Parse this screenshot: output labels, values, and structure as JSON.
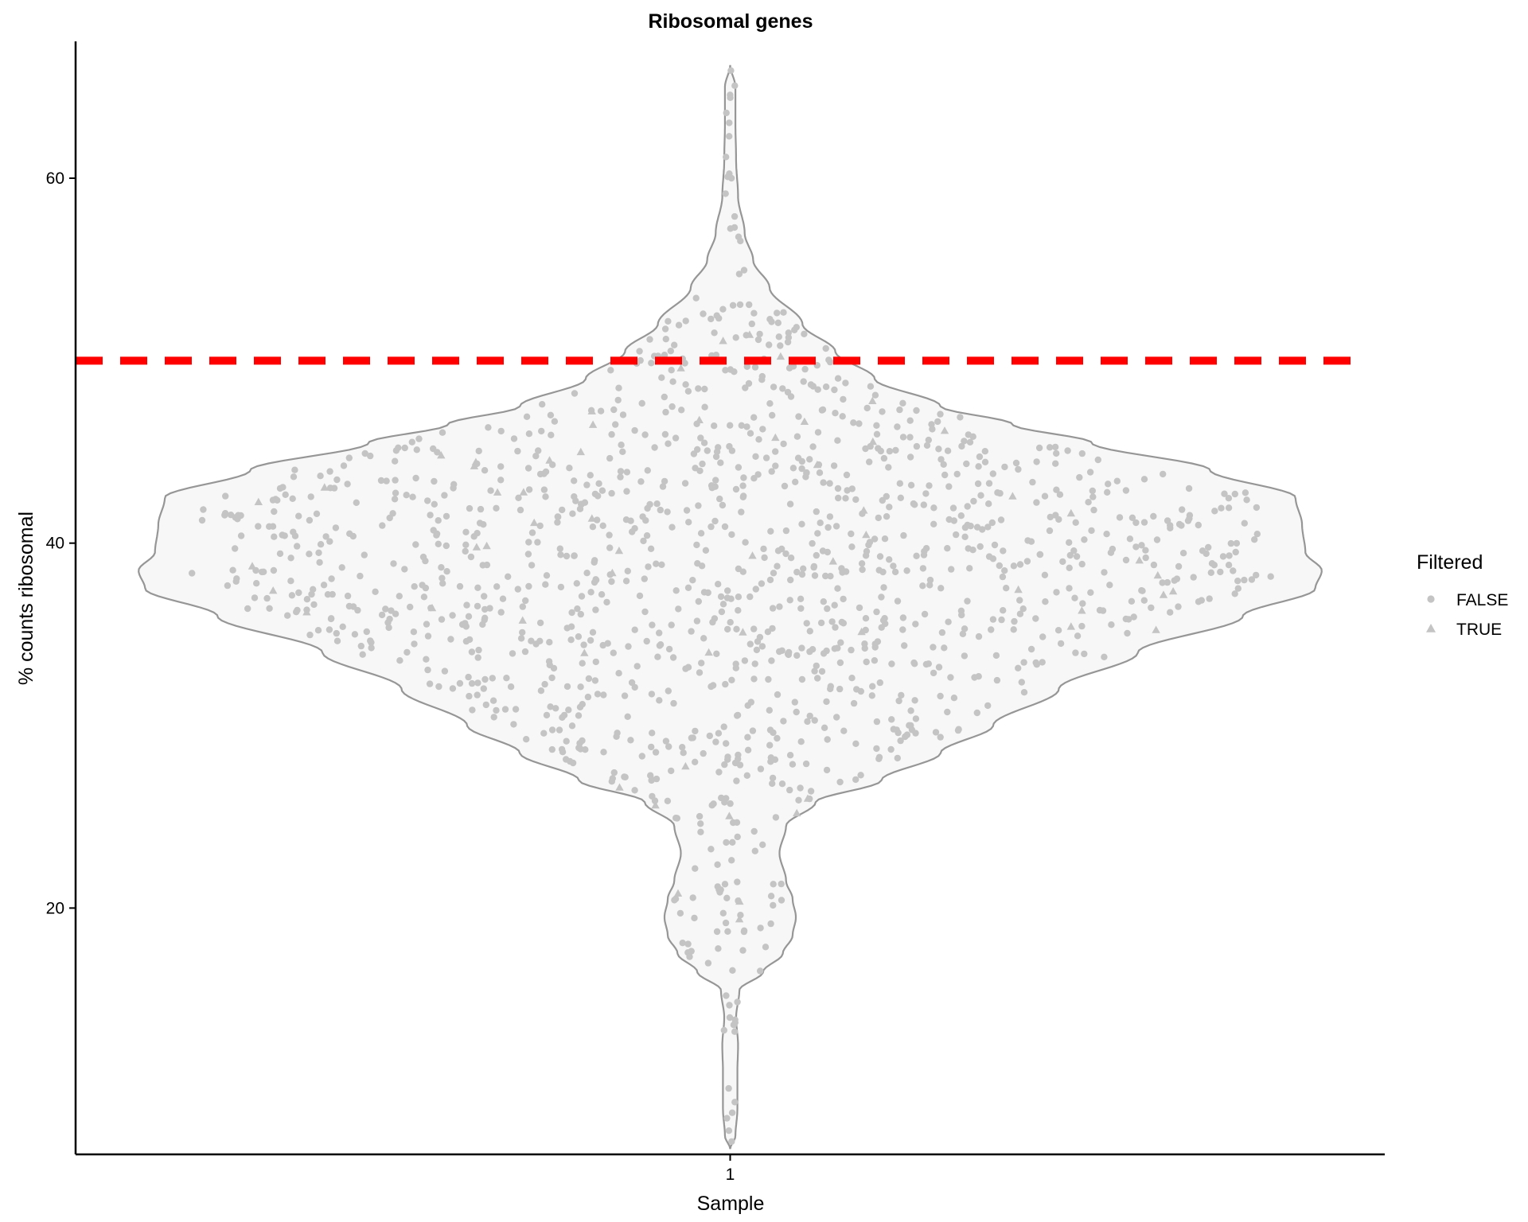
{
  "chart_data": {
    "type": "violin",
    "title": "Ribosomal genes",
    "xlabel": "Sample",
    "ylabel": "% counts ribosomal",
    "categories": [
      "1"
    ],
    "ylim": [
      6.5,
      67.5
    ],
    "yticks": [
      20,
      40,
      60
    ],
    "threshold": {
      "y": 50,
      "color": "#ff0000",
      "style": "dashed"
    },
    "violin": {
      "fill": "#f7f7f7",
      "stroke": "#969696",
      "profile": [
        [
          6.8,
          0.0
        ],
        [
          7.5,
          0.008
        ],
        [
          9,
          0.011
        ],
        [
          11,
          0.011
        ],
        [
          12.5,
          0.012
        ],
        [
          14,
          0.009
        ],
        [
          15.5,
          0.014
        ],
        [
          16.5,
          0.05
        ],
        [
          17.5,
          0.08
        ],
        [
          18.5,
          0.095
        ],
        [
          19.5,
          0.1
        ],
        [
          20.5,
          0.095
        ],
        [
          21.5,
          0.085
        ],
        [
          23,
          0.075
        ],
        [
          24.5,
          0.085
        ],
        [
          25.8,
          0.13
        ],
        [
          27,
          0.23
        ],
        [
          28.5,
          0.32
        ],
        [
          30,
          0.4
        ],
        [
          32,
          0.5
        ],
        [
          34,
          0.62
        ],
        [
          36,
          0.78
        ],
        [
          37.5,
          0.89
        ],
        [
          38.5,
          0.9
        ],
        [
          39.5,
          0.875
        ],
        [
          41,
          0.87
        ],
        [
          42.5,
          0.86
        ],
        [
          44,
          0.73
        ],
        [
          45.5,
          0.55
        ],
        [
          46.5,
          0.43
        ],
        [
          47.5,
          0.32
        ],
        [
          49,
          0.22
        ],
        [
          50.5,
          0.16
        ],
        [
          52,
          0.11
        ],
        [
          54,
          0.06
        ],
        [
          55.5,
          0.035
        ],
        [
          57,
          0.022
        ],
        [
          59,
          0.012
        ],
        [
          61,
          0.009
        ],
        [
          63,
          0.008
        ],
        [
          65,
          0.008
        ],
        [
          66.2,
          0.0
        ]
      ]
    },
    "points": {
      "count": 1400,
      "seed": 7,
      "true_fraction": 0.05,
      "min": 7.2,
      "max": 65.9,
      "outliers": [
        7.2,
        7.8,
        13.3,
        13.6,
        14.0,
        15.2,
        60.0,
        62.3,
        65.9
      ]
    },
    "series": [
      {
        "name": "FALSE",
        "shape": "circle",
        "color": "#c4c4c4"
      },
      {
        "name": "TRUE",
        "shape": "triangle",
        "color": "#c4c4c4"
      }
    ],
    "legend": {
      "title": "Filtered",
      "position": "right"
    }
  }
}
